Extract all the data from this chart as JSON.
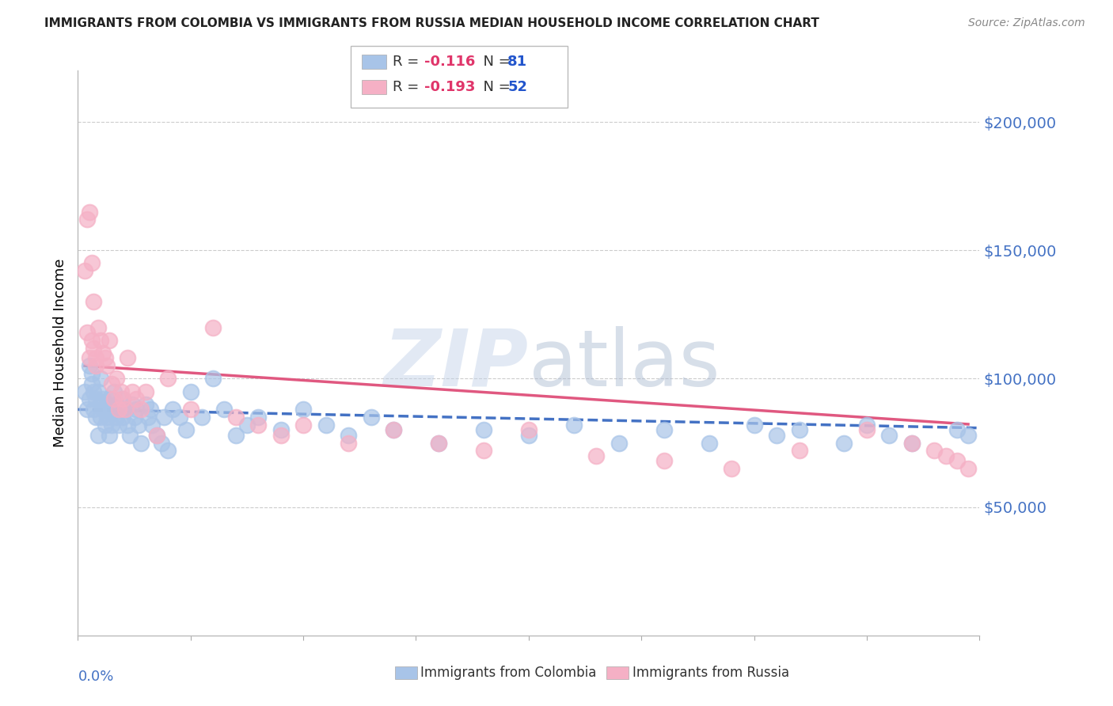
{
  "title": "IMMIGRANTS FROM COLOMBIA VS IMMIGRANTS FROM RUSSIA MEDIAN HOUSEHOLD INCOME CORRELATION CHART",
  "source": "Source: ZipAtlas.com",
  "ylabel": "Median Household Income",
  "colombia_R": -0.116,
  "colombia_N": 81,
  "russia_R": -0.193,
  "russia_N": 52,
  "colombia_color": "#a8c4e8",
  "russia_color": "#f5b0c5",
  "trend_colombia_color": "#4472c4",
  "trend_russia_color": "#e05880",
  "watermark": "ZIPatlas",
  "ytick_vals": [
    50000,
    100000,
    150000,
    200000
  ],
  "ytick_labels": [
    "$50,000",
    "$100,000",
    "$150,000",
    "$200,000"
  ],
  "xlim": [
    0.0,
    0.4
  ],
  "ylim": [
    0,
    220000
  ],
  "colombia_x": [
    0.003,
    0.004,
    0.005,
    0.005,
    0.006,
    0.006,
    0.007,
    0.007,
    0.008,
    0.008,
    0.009,
    0.009,
    0.01,
    0.01,
    0.01,
    0.011,
    0.011,
    0.012,
    0.012,
    0.013,
    0.013,
    0.014,
    0.014,
    0.015,
    0.015,
    0.016,
    0.016,
    0.017,
    0.017,
    0.018,
    0.019,
    0.02,
    0.02,
    0.021,
    0.022,
    0.023,
    0.024,
    0.025,
    0.026,
    0.027,
    0.028,
    0.03,
    0.031,
    0.032,
    0.033,
    0.035,
    0.037,
    0.038,
    0.04,
    0.042,
    0.045,
    0.048,
    0.05,
    0.055,
    0.06,
    0.065,
    0.07,
    0.075,
    0.08,
    0.09,
    0.1,
    0.11,
    0.12,
    0.13,
    0.14,
    0.16,
    0.18,
    0.2,
    0.22,
    0.24,
    0.26,
    0.28,
    0.3,
    0.31,
    0.32,
    0.34,
    0.35,
    0.36,
    0.37,
    0.39,
    0.395
  ],
  "colombia_y": [
    95000,
    88000,
    92000,
    105000,
    98000,
    102000,
    95000,
    88000,
    92000,
    85000,
    78000,
    95000,
    90000,
    85000,
    100000,
    88000,
    92000,
    82000,
    88000,
    85000,
    90000,
    78000,
    92000,
    88000,
    82000,
    95000,
    88000,
    85000,
    90000,
    82000,
    88000,
    92000,
    85000,
    88000,
    82000,
    78000,
    90000,
    85000,
    88000,
    82000,
    75000,
    90000,
    85000,
    88000,
    82000,
    78000,
    75000,
    85000,
    72000,
    88000,
    85000,
    80000,
    95000,
    85000,
    100000,
    88000,
    78000,
    82000,
    85000,
    80000,
    88000,
    82000,
    78000,
    85000,
    80000,
    75000,
    80000,
    78000,
    82000,
    75000,
    80000,
    75000,
    82000,
    78000,
    80000,
    75000,
    82000,
    78000,
    75000,
    80000,
    78000
  ],
  "russia_x": [
    0.003,
    0.004,
    0.004,
    0.005,
    0.005,
    0.006,
    0.006,
    0.007,
    0.007,
    0.008,
    0.008,
    0.009,
    0.01,
    0.011,
    0.012,
    0.013,
    0.014,
    0.015,
    0.016,
    0.017,
    0.018,
    0.019,
    0.02,
    0.021,
    0.022,
    0.024,
    0.026,
    0.028,
    0.03,
    0.035,
    0.04,
    0.05,
    0.06,
    0.07,
    0.08,
    0.09,
    0.1,
    0.12,
    0.14,
    0.16,
    0.18,
    0.2,
    0.23,
    0.26,
    0.29,
    0.32,
    0.35,
    0.37,
    0.38,
    0.385,
    0.39,
    0.395
  ],
  "russia_y": [
    142000,
    162000,
    118000,
    165000,
    108000,
    115000,
    145000,
    112000,
    130000,
    108000,
    105000,
    120000,
    115000,
    110000,
    108000,
    105000,
    115000,
    98000,
    92000,
    100000,
    88000,
    95000,
    92000,
    88000,
    108000,
    95000,
    92000,
    88000,
    95000,
    78000,
    100000,
    88000,
    120000,
    85000,
    82000,
    78000,
    82000,
    75000,
    80000,
    75000,
    72000,
    80000,
    70000,
    68000,
    65000,
    72000,
    80000,
    75000,
    72000,
    70000,
    68000,
    65000
  ]
}
